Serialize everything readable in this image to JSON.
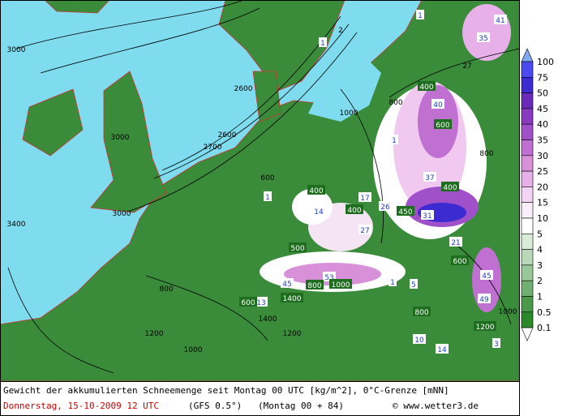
{
  "map": {
    "labels": [
      "2600",
      "3000",
      "3000",
      "2600",
      "2700",
      "3000",
      "3400",
      "1000",
      "800",
      "600",
      "400",
      "800",
      "1",
      "1",
      "2",
      "1",
      "14",
      "17",
      "26",
      "400",
      "450",
      "37",
      "400",
      "31",
      "27",
      "21",
      "53",
      "45",
      "13",
      "800",
      "1400",
      "1",
      "5",
      "10",
      "14",
      "3",
      "45",
      "49",
      "800",
      "1200",
      "1400",
      "1000",
      "1200",
      "40",
      "35",
      "41",
      "27",
      "1",
      "400",
      "600",
      "800",
      "1000",
      "1200",
      "600",
      "500",
      "600",
      "1000"
    ]
  },
  "legend": {
    "ticks": [
      "100",
      "75",
      "50",
      "45",
      "40",
      "35",
      "30",
      "25",
      "20",
      "15",
      "10",
      "5",
      "4",
      "3",
      "2",
      "1",
      "0.5",
      "0.1"
    ]
  },
  "caption": {
    "line1": "Gewicht der akkumulierten Schneemenge seit Montag 00 UTC [kg/m^2], 0°C-Grenze [mNN]",
    "date": "Donnerstag, 15-10-2009  12 UTC",
    "model": "(GFS 0.5°)",
    "run": "(Montag 00 + 84)",
    "credit": "© www.wetter3.de"
  }
}
